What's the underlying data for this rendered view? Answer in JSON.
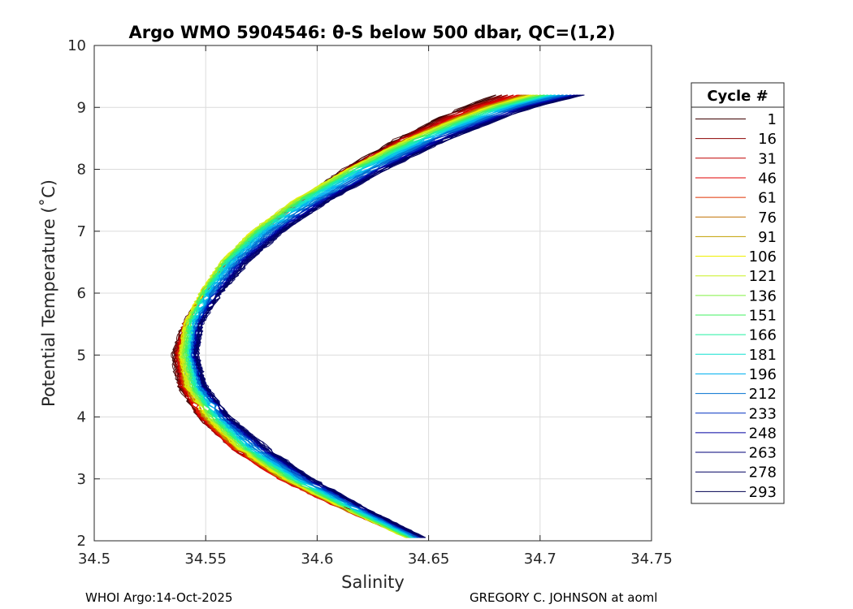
{
  "chart_data": {
    "type": "line",
    "title": "Argo WMO 5904546: θ-S below 500 dbar,  QC=(1,2)",
    "xlabel": "Salinity",
    "ylabel": "Potential Temperature (˚C)",
    "xlim": [
      34.5,
      34.75
    ],
    "ylim": [
      2,
      10
    ],
    "xticks": [
      "34.5",
      "34.55",
      "34.6",
      "34.65",
      "34.7",
      "34.75"
    ],
    "yticks": [
      "2",
      "3",
      "4",
      "5",
      "6",
      "7",
      "8",
      "9",
      "10"
    ],
    "grid": true,
    "legend": {
      "title": "Cycle #",
      "placement": "right-outside",
      "entries": [
        "1",
        "16",
        "31",
        "46",
        "61",
        "76",
        "91",
        "106",
        "121",
        "136",
        "151",
        "166",
        "181",
        "196",
        "212",
        "233",
        "248",
        "263",
        "278",
        "293"
      ],
      "colors": [
        "#3d0000",
        "#8b0000",
        "#c00000",
        "#e00000",
        "#e03000",
        "#c07000",
        "#c0a000",
        "#f0f000",
        "#c8f020",
        "#80f040",
        "#40f060",
        "#20f0a0",
        "#10e0d0",
        "#00b0f0",
        "#0070d0",
        "#0030c0",
        "#0000a0",
        "#00007a",
        "#000060",
        "#000050"
      ]
    },
    "series_model": {
      "description_values": "Sample theta-S curves (salinity at given potential temperature) for selected cycles",
      "theta": [
        2.05,
        2.5,
        3.0,
        3.5,
        4.0,
        4.5,
        5.0,
        5.5,
        6.0,
        6.5,
        7.0,
        7.5,
        8.0,
        8.5,
        9.0,
        9.2
      ],
      "series": [
        {
          "name": "1",
          "salinity": [
            34.645,
            34.615,
            34.585,
            34.562,
            34.547,
            34.538,
            34.535,
            34.54,
            34.549,
            34.56,
            34.575,
            34.592,
            34.612,
            34.636,
            34.665,
            34.68
          ]
        },
        {
          "name": "46",
          "salinity": [
            34.642,
            34.612,
            34.583,
            34.562,
            34.548,
            34.54,
            34.538,
            34.541,
            34.549,
            34.56,
            34.575,
            34.593,
            34.614,
            34.64,
            34.672,
            34.69
          ]
        },
        {
          "name": "121",
          "salinity": [
            34.64,
            34.614,
            34.586,
            34.565,
            34.551,
            34.542,
            34.539,
            34.541,
            34.548,
            34.557,
            34.571,
            34.59,
            34.614,
            34.642,
            34.677,
            34.697
          ]
        },
        {
          "name": "181",
          "salinity": [
            34.643,
            34.617,
            34.59,
            34.569,
            34.555,
            34.546,
            34.543,
            34.544,
            34.55,
            34.56,
            34.575,
            34.595,
            34.619,
            34.648,
            34.683,
            34.705
          ]
        },
        {
          "name": "248",
          "salinity": [
            34.647,
            34.622,
            34.596,
            34.575,
            34.559,
            34.549,
            34.545,
            34.547,
            34.555,
            34.566,
            34.582,
            34.603,
            34.628,
            34.656,
            34.692,
            34.715
          ]
        },
        {
          "name": "293",
          "salinity": [
            34.648,
            34.623,
            34.598,
            34.578,
            34.561,
            34.55,
            34.546,
            34.548,
            34.557,
            34.569,
            34.585,
            34.606,
            34.631,
            34.66,
            34.697,
            34.72
          ]
        }
      ]
    }
  },
  "footer": {
    "left": "WHOI Argo:14-Oct-2025",
    "right": "GREGORY C. JOHNSON at aoml"
  }
}
